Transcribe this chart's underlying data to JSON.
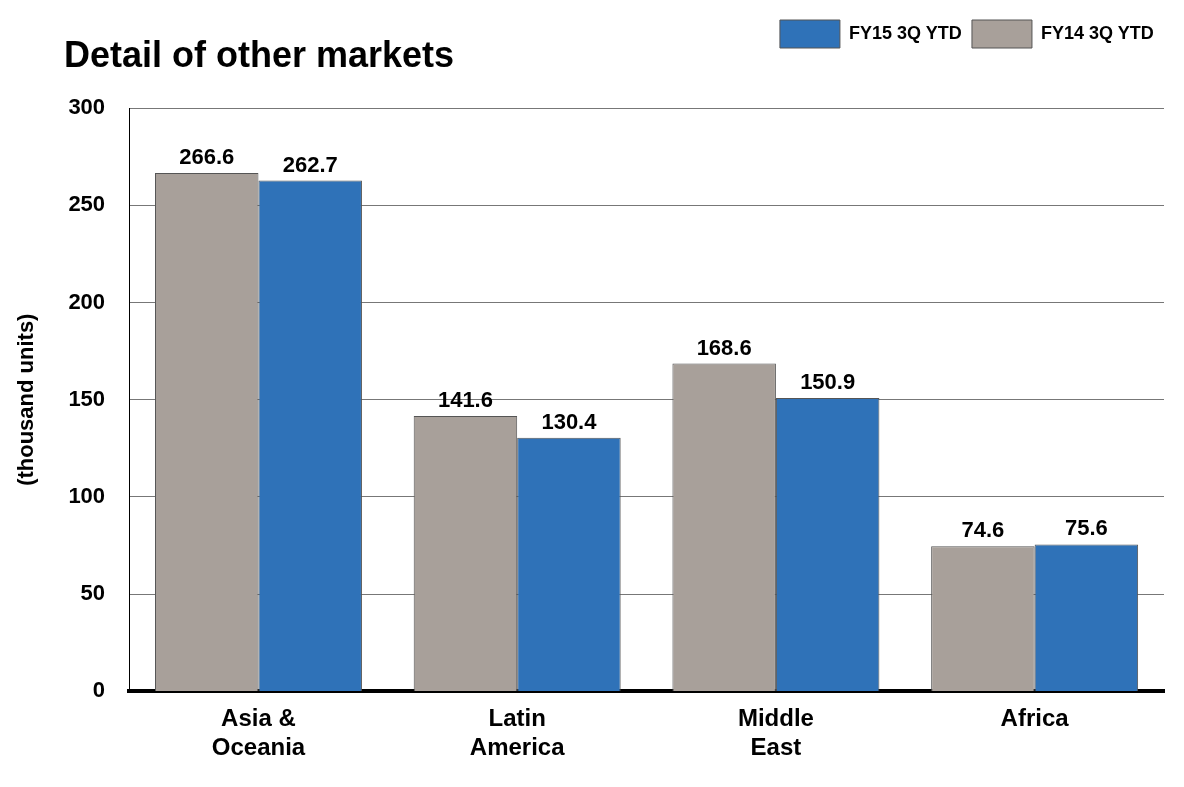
{
  "chart_data": {
    "type": "bar",
    "title": "Detail of other markets",
    "ylabel": "(thousand units)",
    "categories": [
      "Asia & Oceania",
      "Latin America",
      "Middle East",
      "Africa"
    ],
    "series": [
      {
        "name": "FY14 3Q YTD",
        "color": "#a8a09a",
        "values": [
          266.6,
          141.6,
          168.6,
          74.6
        ]
      },
      {
        "name": "FY15 3Q YTD",
        "color": "#2f72b8",
        "values": [
          262.7,
          130.4,
          150.9,
          75.6
        ]
      }
    ],
    "ylim": [
      0,
      300
    ],
    "yticks": [
      0,
      50,
      100,
      150,
      200,
      250,
      300
    ],
    "grid": "y",
    "legend": "top right",
    "data_labels": true
  }
}
